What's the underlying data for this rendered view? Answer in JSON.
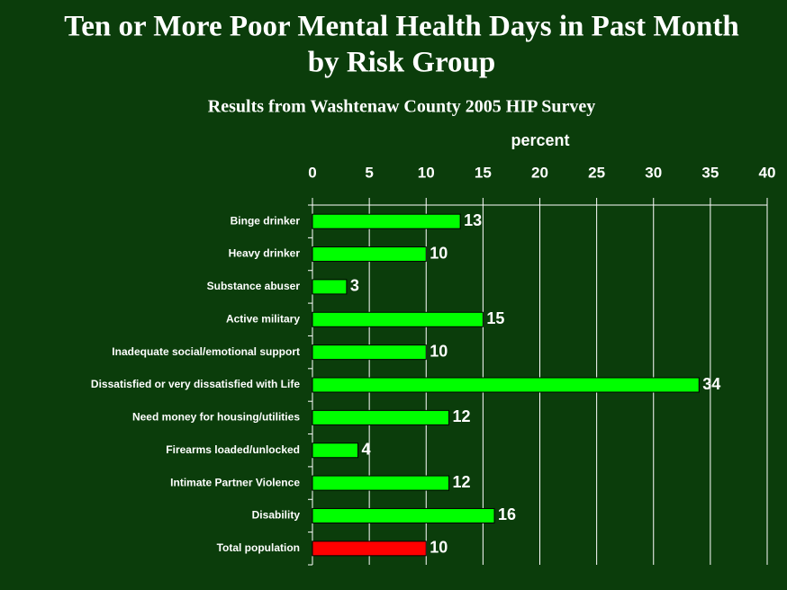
{
  "chart_data": {
    "type": "hbar",
    "title": [
      "Ten or More Poor Mental Health Days in Past Month",
      "by Risk Group"
    ],
    "subtitle": "Results from Washtenaw County 2005 HIP Survey",
    "x_label": "percent",
    "categories": [
      "Binge drinker",
      "Heavy drinker",
      "Substance abuser",
      "Active military",
      "Inadequate social/emotional support",
      "Dissatisfied or very dissatisfied with Life",
      "Need money for housing/utilities",
      "Firearms loaded/unlocked",
      "Intimate Partner Violence",
      "Disability",
      "Total population"
    ],
    "values": [
      13,
      10,
      3,
      15,
      10,
      34,
      12,
      4,
      12,
      16,
      10
    ],
    "colors": [
      "#00ff00",
      "#00ff00",
      "#00ff00",
      "#00ff00",
      "#00ff00",
      "#00ff00",
      "#00ff00",
      "#00ff00",
      "#00ff00",
      "#00ff00",
      "#ff0000"
    ],
    "xlim": [
      0,
      40
    ],
    "xticks": [
      0,
      5,
      10,
      15,
      20,
      25,
      30,
      35,
      40
    ],
    "grid": true
  }
}
